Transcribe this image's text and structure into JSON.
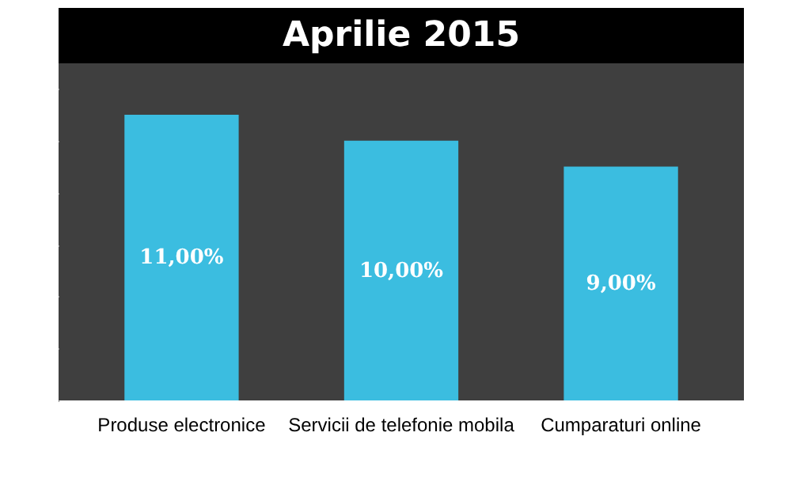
{
  "chart_data": {
    "type": "bar",
    "title": "Aprilie 2015",
    "categories": [
      "Produse electronice",
      "Servicii de telefonie mobila",
      "Cumparaturi online"
    ],
    "values": [
      11,
      10,
      9
    ],
    "color": "#3bbde0",
    "relative": false,
    "value_labels": [
      "11,00%",
      "10,00%",
      "9,00%"
    ]
  }
}
